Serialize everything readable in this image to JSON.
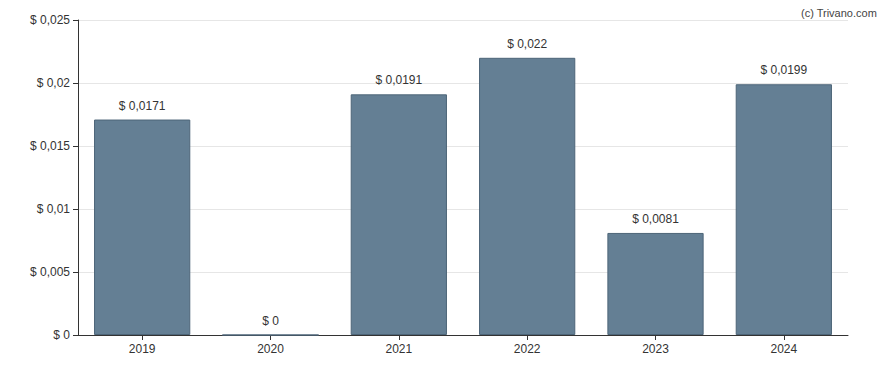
{
  "chart_data": {
    "type": "bar",
    "annotations": [
      "(c) Trivano.com"
    ],
    "categories": [
      "2019",
      "2020",
      "2021",
      "2022",
      "2023",
      "2024"
    ],
    "values": [
      0.0171,
      0,
      0.0191,
      0.022,
      0.0081,
      0.0199
    ],
    "value_labels": [
      "$ 0,0171",
      "$ 0",
      "$ 0,0191",
      "$ 0,022",
      "$ 0,0081",
      "$ 0,0199"
    ],
    "data_labels": true,
    "color": "#647f94",
    "ylim": [
      0,
      0.025
    ],
    "yticks": [
      {
        "value": 0,
        "label": "$ 0"
      },
      {
        "value": 0.005,
        "label": "$ 0,005"
      },
      {
        "value": 0.01,
        "label": "$ 0,01"
      },
      {
        "value": 0.015,
        "label": "$ 0,015"
      },
      {
        "value": 0.02,
        "label": "$ 0,02"
      },
      {
        "value": 0.025,
        "label": "$ 0,025"
      }
    ],
    "grid": true
  }
}
